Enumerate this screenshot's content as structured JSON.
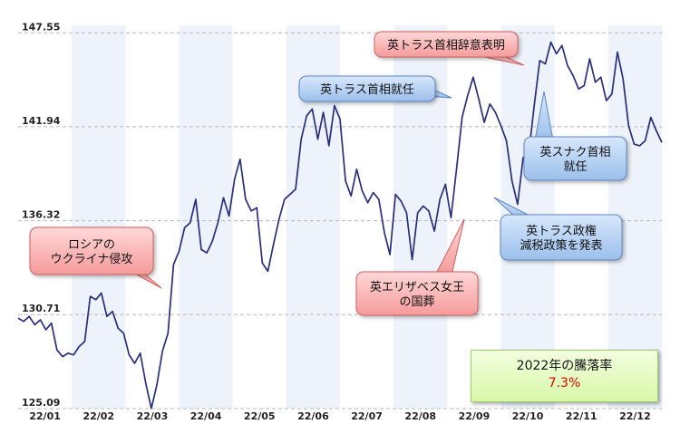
{
  "chart_data": {
    "type": "line",
    "x_ticks": [
      "22/01",
      "22/02",
      "22/03",
      "22/04",
      "22/05",
      "22/06",
      "22/07",
      "22/08",
      "22/09",
      "22/10",
      "22/11",
      "22/12"
    ],
    "y_ticks": [
      "125.09",
      "130.71",
      "136.32",
      "141.94",
      "147.55"
    ],
    "ylim": [
      125.09,
      148.0
    ],
    "grid": true,
    "series": [
      {
        "values": [
          130.5,
          130.3,
          130.6,
          130.1,
          130.4,
          129.8,
          130.2,
          128.6,
          128.2,
          128.4,
          128.3,
          128.8,
          129.1,
          131.8,
          131.6,
          132.0,
          130.6,
          130.9,
          129.9,
          129.6,
          128.3,
          127.8,
          128.4,
          126.6,
          125.1,
          126.5,
          128.5,
          129.6,
          133.7,
          134.5,
          135.9,
          136.2,
          137.6,
          134.6,
          134.4,
          135.1,
          136.2,
          137.7,
          136.6,
          138.8,
          140.0,
          137.6,
          136.9,
          137.1,
          133.8,
          133.3,
          134.9,
          136.4,
          137.6,
          137.9,
          138.2,
          141.2,
          142.6,
          143.0,
          141.2,
          142.8,
          140.8,
          143.2,
          142.4,
          138.7,
          137.8,
          139.4,
          138.1,
          137.4,
          138.0,
          137.6,
          135.6,
          134.3,
          137.9,
          137.5,
          136.8,
          134.0,
          136.8,
          137.2,
          136.9,
          135.7,
          137.6,
          138.5,
          136.5,
          139.4,
          142.5,
          143.8,
          144.9,
          143.6,
          142.2,
          143.3,
          142.8,
          142.0,
          141.1,
          138.7,
          137.3,
          140.1,
          140.3,
          143.2,
          145.9,
          145.7,
          147.0,
          146.3,
          146.8,
          145.6,
          145.0,
          144.2,
          144.4,
          146.0,
          144.6,
          144.9,
          143.5,
          143.9,
          146.4,
          144.8,
          142.0,
          140.9,
          140.8,
          141.1,
          142.5,
          141.7,
          141.0
        ],
        "color": "#2a2f7a"
      }
    ],
    "annotations": [
      "ロシアの\nウクライナ侵攻",
      "英トラス首相就任",
      "英エリザベス女王\nの国葬",
      "英トラス政権\n減税政策を発表",
      "英トラス首相辞意表明",
      "英スナク首相\n就任"
    ]
  },
  "summary": {
    "label": "2022年の騰落率",
    "value": "7.3%"
  }
}
